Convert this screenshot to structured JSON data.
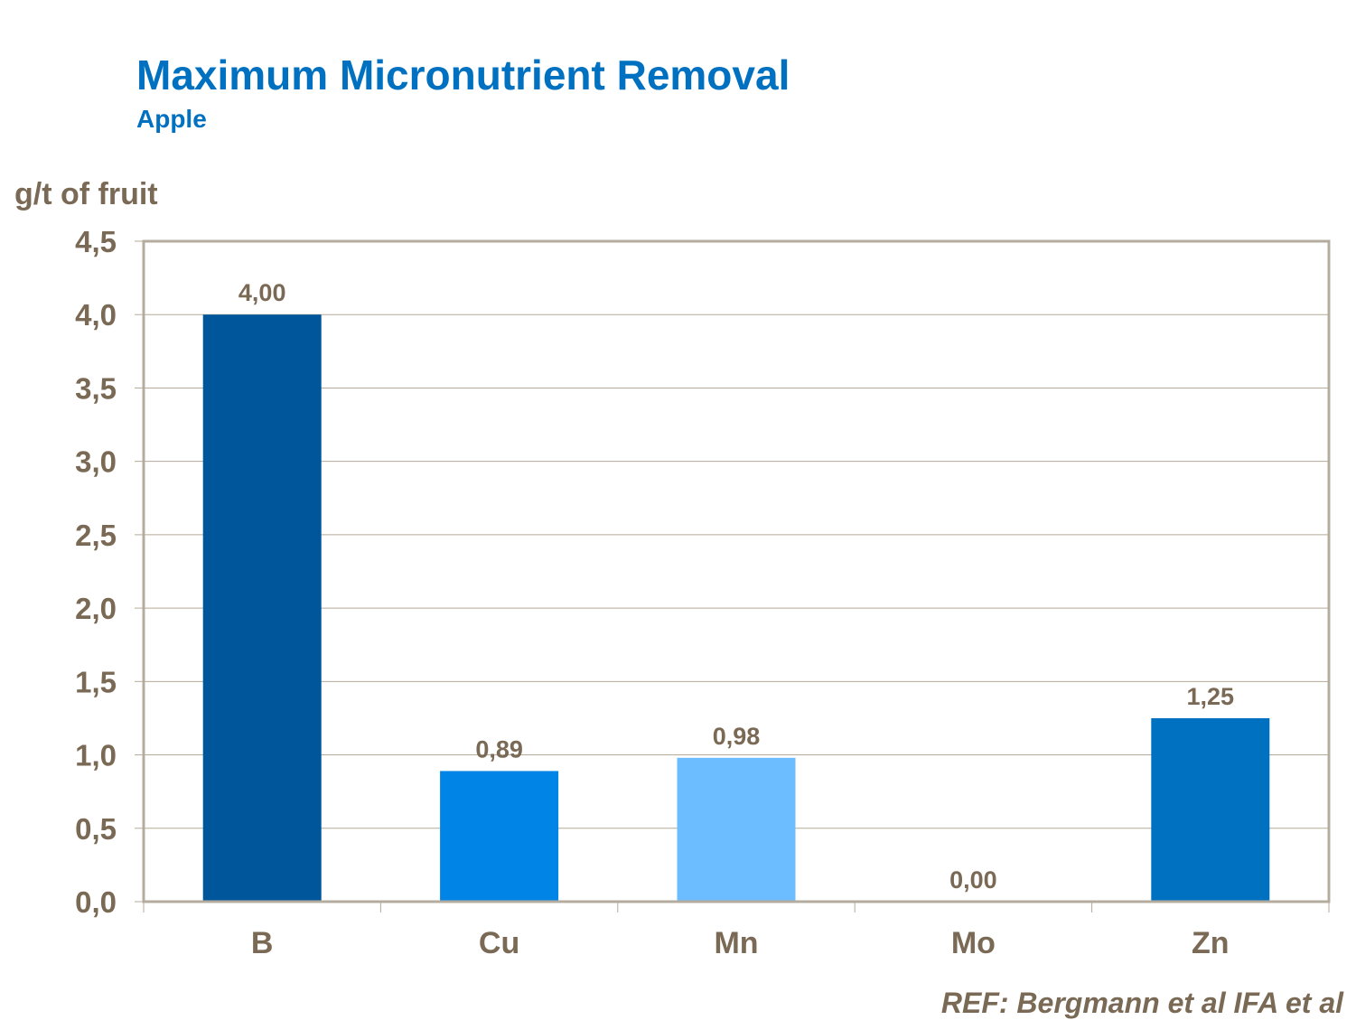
{
  "chart_data": {
    "type": "bar",
    "title": "Maximum Micronutrient Removal",
    "subtitle": "Apple",
    "xlabel": "",
    "ylabel": "g/t of fruit",
    "categories": [
      "B",
      "Cu",
      "Mn",
      "Mo",
      "Zn"
    ],
    "values": [
      4.0,
      0.89,
      0.98,
      0.0,
      1.25
    ],
    "data_labels": [
      "4,00",
      "0,89",
      "0,98",
      "0,00",
      "1,25"
    ],
    "colors": [
      "#00569a",
      "#0084e6",
      "#6bbdff",
      "#8fb4d8",
      "#0070c0"
    ],
    "ylim": [
      0,
      4.5
    ],
    "yticks": [
      0,
      0.5,
      1.0,
      1.5,
      2.0,
      2.5,
      3.0,
      3.5,
      4.0,
      4.5
    ],
    "ytick_labels": [
      "0,0",
      "0,5",
      "1,0",
      "1,5",
      "2,0",
      "2,5",
      "3,0",
      "3,5",
      "4,0",
      "4,5"
    ],
    "grid": true,
    "legend": "none",
    "source": "REF: Bergmann et al IFA et al"
  }
}
